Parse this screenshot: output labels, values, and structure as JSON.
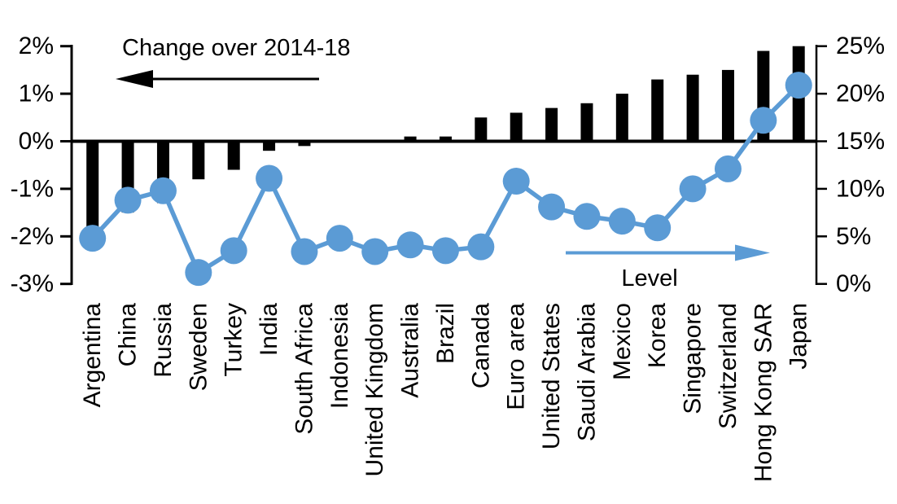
{
  "chart_data": {
    "type": "combo_bar_line",
    "title": "",
    "categories": [
      "Argentina",
      "China",
      "Russia",
      "Sweden",
      "Turkey",
      "India",
      "South Africa",
      "Indonesia",
      "United Kingdom",
      "Australia",
      "Brazil",
      "Canada",
      "Euro area",
      "United States",
      "Saudi Arabia",
      "Mexico",
      "Korea",
      "Singapore",
      "Switzerland",
      "Hong Kong SAR",
      "Japan"
    ],
    "series": [
      {
        "name": "Change over 2014-18",
        "type": "bar",
        "axis": "left",
        "color": "#000000",
        "unit": "%",
        "values": [
          -1.8,
          -1.5,
          -1.3,
          -0.8,
          -0.6,
          -0.2,
          -0.1,
          0,
          0,
          0.1,
          0.1,
          0.5,
          0.6,
          0.7,
          0.8,
          1.0,
          1.3,
          1.4,
          1.5,
          1.9,
          2.0
        ]
      },
      {
        "name": "Level",
        "type": "line",
        "axis": "right",
        "color": "#5B9BD5",
        "unit": "%",
        "values": [
          4.8,
          8.8,
          9.8,
          1.2,
          3.5,
          11.1,
          3.4,
          4.8,
          3.4,
          4.1,
          3.5,
          3.9,
          10.8,
          8.1,
          7.1,
          6.6,
          5.9,
          10.0,
          12.1,
          17.2,
          20.9
        ]
      }
    ],
    "left_axis": {
      "min": -3,
      "max": 2,
      "tick_step": 1,
      "tick_labels": [
        "2%",
        "1%",
        "0%",
        "-1%",
        "-2%",
        "-3%"
      ]
    },
    "right_axis": {
      "min": 0,
      "max": 25,
      "tick_step": 5,
      "tick_labels": [
        "25%",
        "20%",
        "15%",
        "10%",
        "5%",
        "0%"
      ]
    },
    "annotations": {
      "bar_series_label": "Change over 2014-18",
      "line_series_label": "Level",
      "bar_arrow_direction": "left",
      "line_arrow_direction": "right"
    },
    "grid": false,
    "legend_position": "none",
    "colors": {
      "bar": "#000000",
      "line": "#5B9BD5",
      "axis": "#000000",
      "background": "#FFFFFF"
    }
  }
}
